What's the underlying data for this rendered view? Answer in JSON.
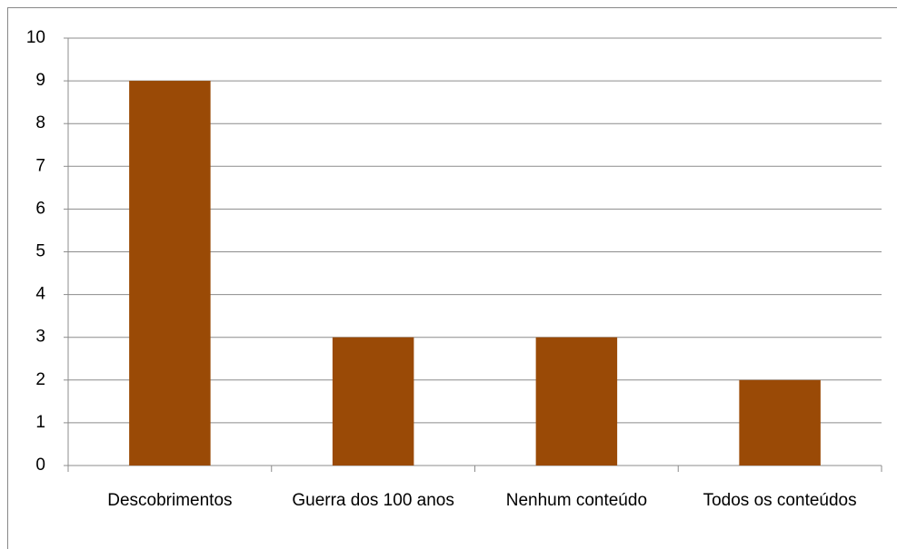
{
  "chart_data": {
    "type": "bar",
    "categories": [
      "Descobrimentos",
      "Guerra dos 100 anos",
      "Nenhum conteúdo",
      "Todos os conteúdos"
    ],
    "values": [
      9,
      3,
      3,
      2
    ],
    "color": "#9a4a06",
    "ylim": [
      0,
      10
    ],
    "yticks": [
      0,
      1,
      2,
      3,
      4,
      5,
      6,
      7,
      8,
      9,
      10
    ],
    "grid": true
  }
}
